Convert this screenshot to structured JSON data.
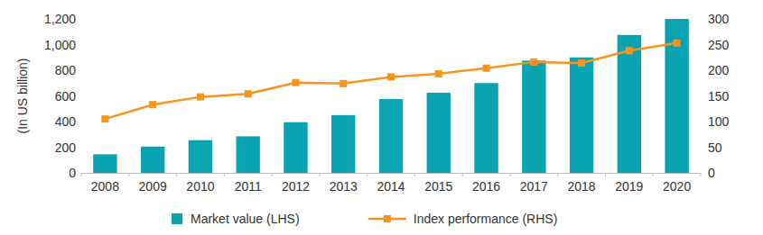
{
  "chart_data": {
    "type": "bar",
    "y_label": "(In US billion)",
    "categories": [
      "2008",
      "2009",
      "2010",
      "2011",
      "2012",
      "2013",
      "2014",
      "2015",
      "2016",
      "2017",
      "2018",
      "2019",
      "2020"
    ],
    "series": [
      {
        "name": "Market value (LHS)",
        "type": "bar",
        "color": "#0aa3b1",
        "values": [
          145,
          205,
          255,
          285,
          395,
          450,
          575,
          625,
          700,
          875,
          900,
          1075,
          1200
        ]
      },
      {
        "name": "Index performance (RHS)",
        "type": "line",
        "axis": "y2",
        "color": "#f7941d",
        "marker": "square",
        "values": [
          105,
          133,
          148,
          154,
          176,
          174,
          187,
          193,
          204,
          216,
          214,
          238,
          253
        ]
      }
    ],
    "ylim": [
      0,
      1200
    ],
    "yticks": [
      0,
      200,
      400,
      600,
      800,
      {
        "value": 1000,
        "label": "1,000"
      },
      {
        "value": 1200,
        "label": "1,200"
      }
    ],
    "y2lim": [
      0,
      300
    ],
    "y2ticks": [
      0,
      50,
      100,
      150,
      200,
      250,
      300
    ],
    "grid": false,
    "legend": "bottom"
  }
}
